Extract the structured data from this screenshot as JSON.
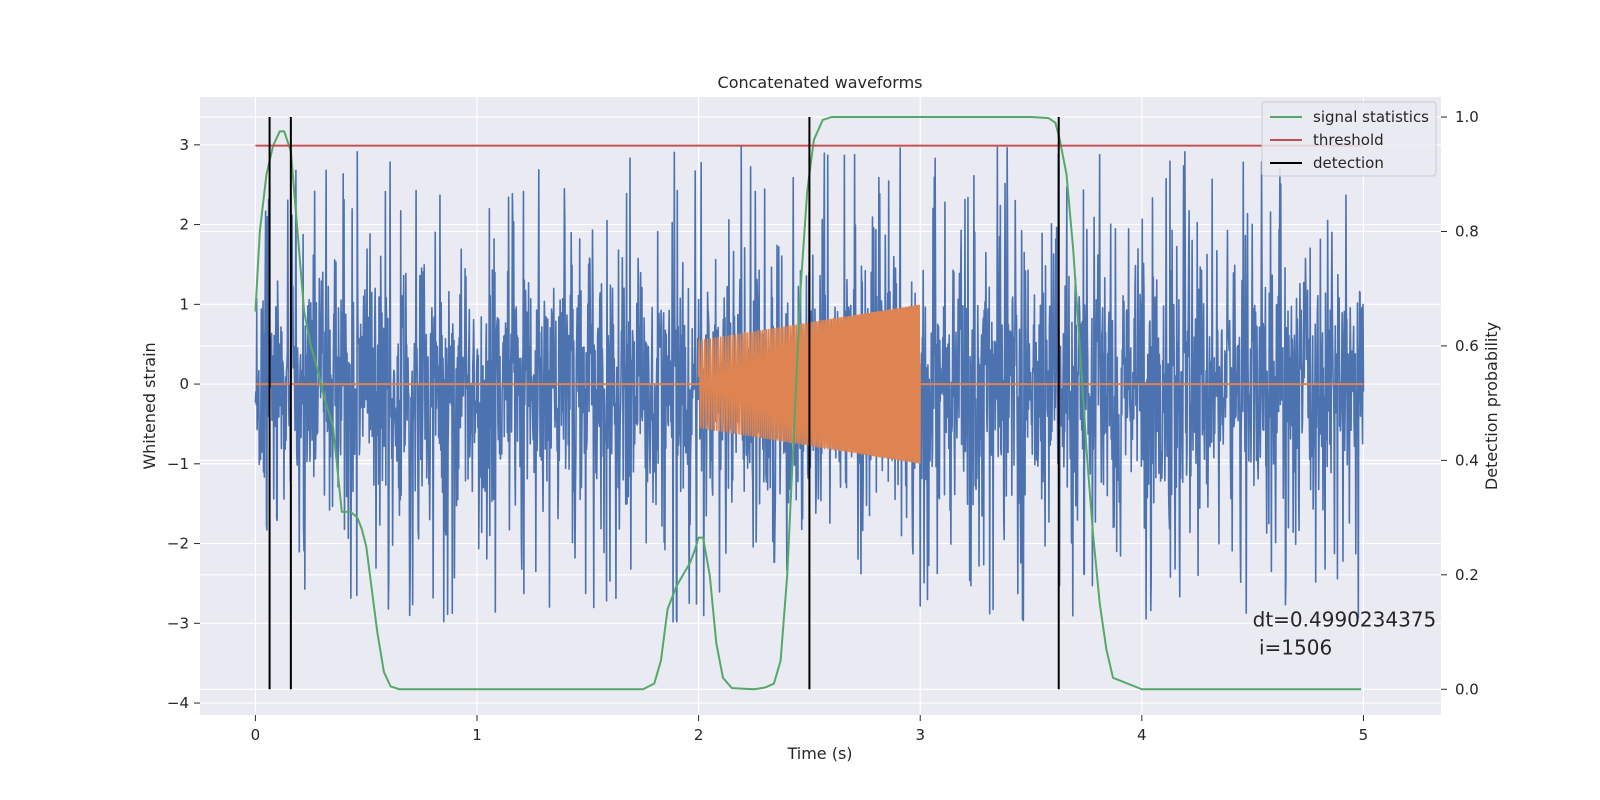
{
  "chart_data": {
    "type": "line",
    "title": "Concatenated waveforms",
    "xlabel": "Time (s)",
    "ylabel": "Whitened strain",
    "ylabel_right": "Detection probability",
    "xlim": [
      -0.25,
      5.35
    ],
    "ylim": [
      -4.15,
      3.6
    ],
    "ylim_right": [
      -0.045,
      1.035
    ],
    "xticks": [
      0,
      1,
      2,
      3,
      4,
      5
    ],
    "yticks": [
      -4,
      -3,
      -2,
      -1,
      0,
      1,
      2,
      3
    ],
    "yticks_right": [
      0.0,
      0.2,
      0.4,
      0.6,
      0.8,
      1.0
    ],
    "xtick_labels": [
      "0",
      "1",
      "2",
      "3",
      "4",
      "5"
    ],
    "ytick_labels": [
      "−4",
      "−3",
      "−2",
      "−1",
      "0",
      "1",
      "2",
      "3"
    ],
    "ytick_labels_right": [
      "0.0",
      "0.2",
      "0.4",
      "0.6",
      "0.8",
      "1.0"
    ],
    "grid": true,
    "legend_position": "top-right",
    "legend": [
      "signal statistics",
      "threshold",
      "detection"
    ],
    "colors": {
      "background": "#eaeaf2",
      "grid": "#ffffff",
      "noise": "#4c72b0",
      "injection": "#dd8452",
      "statistic": "#55a868",
      "threshold": "#c44e52",
      "detection": "#000000"
    },
    "series": [
      {
        "name": "",
        "axis": "left",
        "kind": "noise",
        "x_range": [
          0,
          5
        ],
        "envelope_typical": 1.1,
        "peak_max": 3.22,
        "trough_min": -3.55
      },
      {
        "name": "",
        "axis": "left",
        "kind": "chirp",
        "x_range": [
          2.0,
          3.0
        ],
        "amplitude_start": 0.55,
        "amplitude_end": 1.0,
        "flat_value": 0
      },
      {
        "name": "signal statistics",
        "axis": "right",
        "x": [
          0.0,
          0.02,
          0.05,
          0.08,
          0.11,
          0.13,
          0.16,
          0.19,
          0.22,
          0.25,
          0.28,
          0.31,
          0.35,
          0.39,
          0.43,
          0.46,
          0.48,
          0.5,
          0.52,
          0.55,
          0.58,
          0.61,
          0.65,
          0.8,
          1.0,
          1.2,
          1.5,
          1.75,
          1.8,
          1.83,
          1.86,
          1.9,
          1.93,
          1.96,
          1.98,
          2.0,
          2.02,
          2.05,
          2.08,
          2.11,
          2.15,
          2.25,
          2.3,
          2.34,
          2.37,
          2.4,
          2.43,
          2.46,
          2.49,
          2.52,
          2.56,
          2.6,
          2.7,
          3.0,
          3.5,
          3.58,
          3.61,
          3.63,
          3.66,
          3.69,
          3.72,
          3.75,
          3.78,
          3.81,
          3.84,
          3.87,
          4.0,
          4.5,
          4.99
        ],
        "values": [
          0.66,
          0.8,
          0.9,
          0.95,
          0.975,
          0.975,
          0.94,
          0.8,
          0.66,
          0.6,
          0.56,
          0.51,
          0.46,
          0.31,
          0.31,
          0.3,
          0.28,
          0.25,
          0.19,
          0.1,
          0.03,
          0.005,
          0.0,
          0.0,
          0.0,
          0.0,
          0.0,
          0.0,
          0.01,
          0.05,
          0.14,
          0.18,
          0.2,
          0.22,
          0.24,
          0.265,
          0.265,
          0.2,
          0.08,
          0.02,
          0.002,
          0.0,
          0.003,
          0.01,
          0.05,
          0.2,
          0.45,
          0.7,
          0.87,
          0.96,
          0.995,
          1.0,
          1.0,
          1.0,
          1.0,
          0.998,
          0.99,
          0.96,
          0.9,
          0.77,
          0.6,
          0.42,
          0.27,
          0.15,
          0.07,
          0.02,
          0.0,
          0.0,
          0.0
        ]
      },
      {
        "name": "threshold",
        "axis": "right",
        "x": [
          0,
          5
        ],
        "values": [
          0.95,
          0.95
        ]
      }
    ],
    "detections": [
      0.064,
      0.16,
      2.5,
      3.625
    ],
    "annotation": {
      "x": 4.5,
      "y": 0.11,
      "line1": "dt=0.4990234375",
      "line2": " i=1506"
    }
  }
}
